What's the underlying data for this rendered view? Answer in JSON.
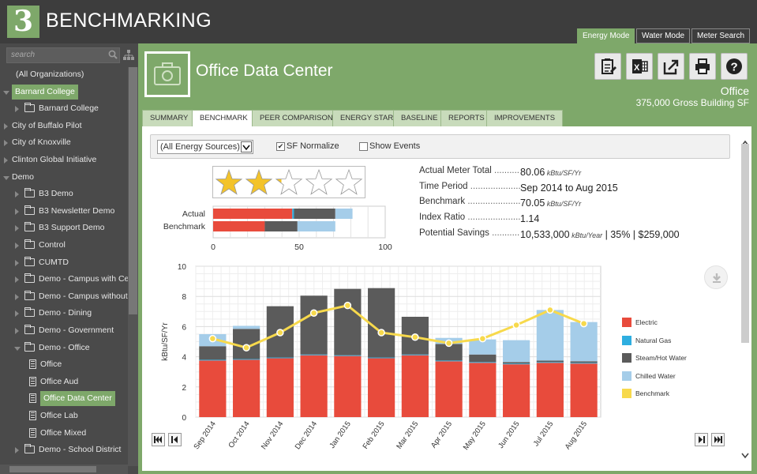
{
  "app": {
    "logo": "3",
    "title": "BENCHMARKING"
  },
  "modes": [
    "Energy Mode",
    "Water Mode",
    "Meter Search"
  ],
  "sidebar": {
    "search_placeholder": "search",
    "items": [
      {
        "label": "(All Organizations)",
        "level": 0,
        "type": "none",
        "arrow": "none"
      },
      {
        "label": "Barnard College",
        "level": 0,
        "type": "none",
        "arrow": "open",
        "selected": true
      },
      {
        "label": "Barnard College",
        "level": 1,
        "type": "folder",
        "arrow": "closed"
      },
      {
        "label": "City of Buffalo Pilot",
        "level": 0,
        "type": "none",
        "arrow": "closed"
      },
      {
        "label": "City of Knoxville",
        "level": 0,
        "type": "none",
        "arrow": "closed"
      },
      {
        "label": "Clinton Global Initiative",
        "level": 0,
        "type": "none",
        "arrow": "closed"
      },
      {
        "label": "Demo",
        "level": 0,
        "type": "none",
        "arrow": "open"
      },
      {
        "label": "B3 Demo",
        "level": 1,
        "type": "folder",
        "arrow": "closed"
      },
      {
        "label": "B3 Newsletter Demo",
        "level": 1,
        "type": "folder",
        "arrow": "closed"
      },
      {
        "label": "B3 Support Demo",
        "level": 1,
        "type": "folder",
        "arrow": "closed"
      },
      {
        "label": "Control",
        "level": 1,
        "type": "folder",
        "arrow": "closed"
      },
      {
        "label": "CUMTD",
        "level": 1,
        "type": "folder",
        "arrow": "closed"
      },
      {
        "label": "Demo - Campus with Cen",
        "level": 1,
        "type": "folder",
        "arrow": "closed"
      },
      {
        "label": "Demo - Campus without C",
        "level": 1,
        "type": "folder",
        "arrow": "closed"
      },
      {
        "label": "Demo - Dining",
        "level": 1,
        "type": "folder",
        "arrow": "closed"
      },
      {
        "label": "Demo - Government",
        "level": 1,
        "type": "folder",
        "arrow": "closed"
      },
      {
        "label": "Demo - Office",
        "level": 1,
        "type": "folder",
        "arrow": "open"
      },
      {
        "label": "Office",
        "level": 2,
        "type": "building",
        "arrow": "none"
      },
      {
        "label": "Office Aud",
        "level": 2,
        "type": "building",
        "arrow": "none"
      },
      {
        "label": "Office Data Center",
        "level": 2,
        "type": "building",
        "arrow": "none",
        "selected": true
      },
      {
        "label": "Office Lab",
        "level": 2,
        "type": "building",
        "arrow": "none"
      },
      {
        "label": "Office Mixed",
        "level": 2,
        "type": "building",
        "arrow": "none"
      },
      {
        "label": "Demo - School District",
        "level": 1,
        "type": "folder",
        "arrow": "closed"
      }
    ]
  },
  "header": {
    "title": "Office Data Center",
    "building_type": "Office",
    "building_sf": "375,000 Gross Building SF"
  },
  "tabs": [
    "SUMMARY",
    "BENCHMARK",
    "PEER COMPARISON",
    "ENERGY STAR",
    "BASELINE",
    "REPORTS",
    "IMPROVEMENTS"
  ],
  "toolbar": {
    "energy_source": "(All Energy Sources)",
    "sf_normalize_label": "SF Normalize",
    "sf_normalize_checked": true,
    "show_events_label": "Show Events",
    "show_events_checked": false
  },
  "rating": {
    "stars_filled": 2.2,
    "stars_total": 5
  },
  "comparison_bars": {
    "labels": [
      "Actual",
      "Benchmark"
    ],
    "axis_ticks": [
      "0",
      "50",
      "100"
    ],
    "actual": {
      "electric": 46,
      "natural_gas": 1,
      "steam": 24,
      "chilled": 10
    },
    "benchmark": {
      "electric": 30,
      "natural_gas": 0,
      "steam": 19,
      "chilled": 22
    }
  },
  "metrics": [
    {
      "label": "Actual Meter Total",
      "value": "80.06",
      "unit": "kBtu/SF/Yr"
    },
    {
      "label": "Time Period",
      "value": "Sep 2014 to Aug 2015",
      "unit": ""
    },
    {
      "label": "Benchmark",
      "value": "70.05",
      "unit": "kBtu/SF/Yr"
    },
    {
      "label": "Index Ratio",
      "value": "1.14",
      "unit": ""
    },
    {
      "label": "Potential Savings",
      "value": "10,533,000",
      "unit": "kBtu/Year",
      "extra": " | 35% | $259,000"
    }
  ],
  "colors": {
    "electric": "#e84b3c",
    "natural_gas": "#2eaee0",
    "steam": "#5b5b5b",
    "chilled": "#a5cde9",
    "benchmark": "#f7d94c",
    "accent": "#7ea86a"
  },
  "chart_data": {
    "type": "bar",
    "stacked": true,
    "ylabel": "kBtu/SF/Yr",
    "ylim": [
      0,
      10
    ],
    "yticks": [
      0,
      2,
      4,
      6,
      8,
      10
    ],
    "categories": [
      "Sep 2014",
      "Oct 2014",
      "Nov 2014",
      "Dec 2014",
      "Jan 2015",
      "Feb 2015",
      "Mar 2015",
      "Apr 2015",
      "May 2015",
      "Jun 2015",
      "Jul 2015",
      "Aug 2015"
    ],
    "series": [
      {
        "name": "Electric",
        "key": "electric",
        "values": [
          3.75,
          3.8,
          3.9,
          4.1,
          4.05,
          3.9,
          4.1,
          3.7,
          3.6,
          3.5,
          3.6,
          3.55
        ]
      },
      {
        "name": "Natural Gas",
        "key": "natural_gas",
        "values": [
          0.05,
          0.05,
          0.05,
          0.05,
          0.05,
          0.05,
          0.05,
          0.05,
          0.05,
          0.05,
          0.05,
          0.05
        ]
      },
      {
        "name": "Steam/Hot Water",
        "key": "steam",
        "values": [
          0.9,
          2.0,
          3.4,
          3.9,
          4.4,
          4.6,
          2.5,
          1.1,
          0.5,
          0.1,
          0.1,
          0.1
        ]
      },
      {
        "name": "Chilled Water",
        "key": "chilled",
        "values": [
          0.8,
          0.2,
          0.0,
          0.0,
          0.0,
          0.0,
          0.0,
          0.4,
          1.0,
          1.45,
          3.35,
          2.6
        ]
      }
    ],
    "line": {
      "name": "Benchmark",
      "key": "benchmark",
      "values": [
        5.2,
        4.6,
        5.6,
        6.9,
        7.4,
        5.6,
        5.3,
        4.9,
        5.2,
        6.1,
        7.1,
        6.2
      ]
    },
    "legend_position": "right"
  }
}
